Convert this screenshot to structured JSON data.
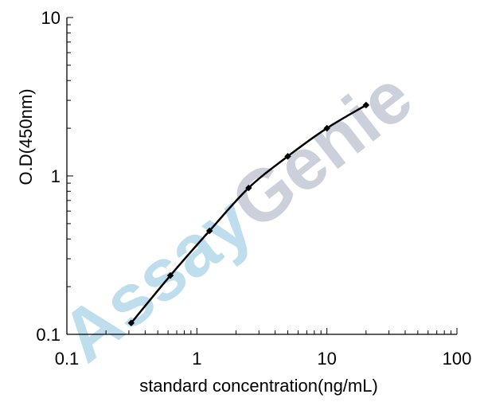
{
  "chart_data": {
    "type": "line",
    "xlabel": "standard concentration(ng/mL)",
    "ylabel": "O.D(450nm)",
    "xscale": "log",
    "yscale": "log",
    "xlim": [
      0.1,
      100
    ],
    "ylim": [
      0.1,
      10
    ],
    "x_ticks": [
      "0.1",
      "1",
      "10",
      "100"
    ],
    "y_ticks": [
      "0.1",
      "1",
      "10"
    ],
    "grid": false,
    "legend": "none",
    "series": [
      {
        "x": [
          0.3125,
          0.625,
          1.25,
          2.5,
          5,
          10,
          20
        ],
        "y": [
          0.118,
          0.235,
          0.45,
          0.84,
          1.33,
          2.0,
          2.8
        ]
      }
    ],
    "colors": {
      "line": "#000000",
      "axis": "#000000",
      "watermark_assay": "#b8daec",
      "watermark_genie": "#c6ccd6"
    }
  },
  "watermark": {
    "part1": "Assay",
    "part2": "Genie"
  }
}
